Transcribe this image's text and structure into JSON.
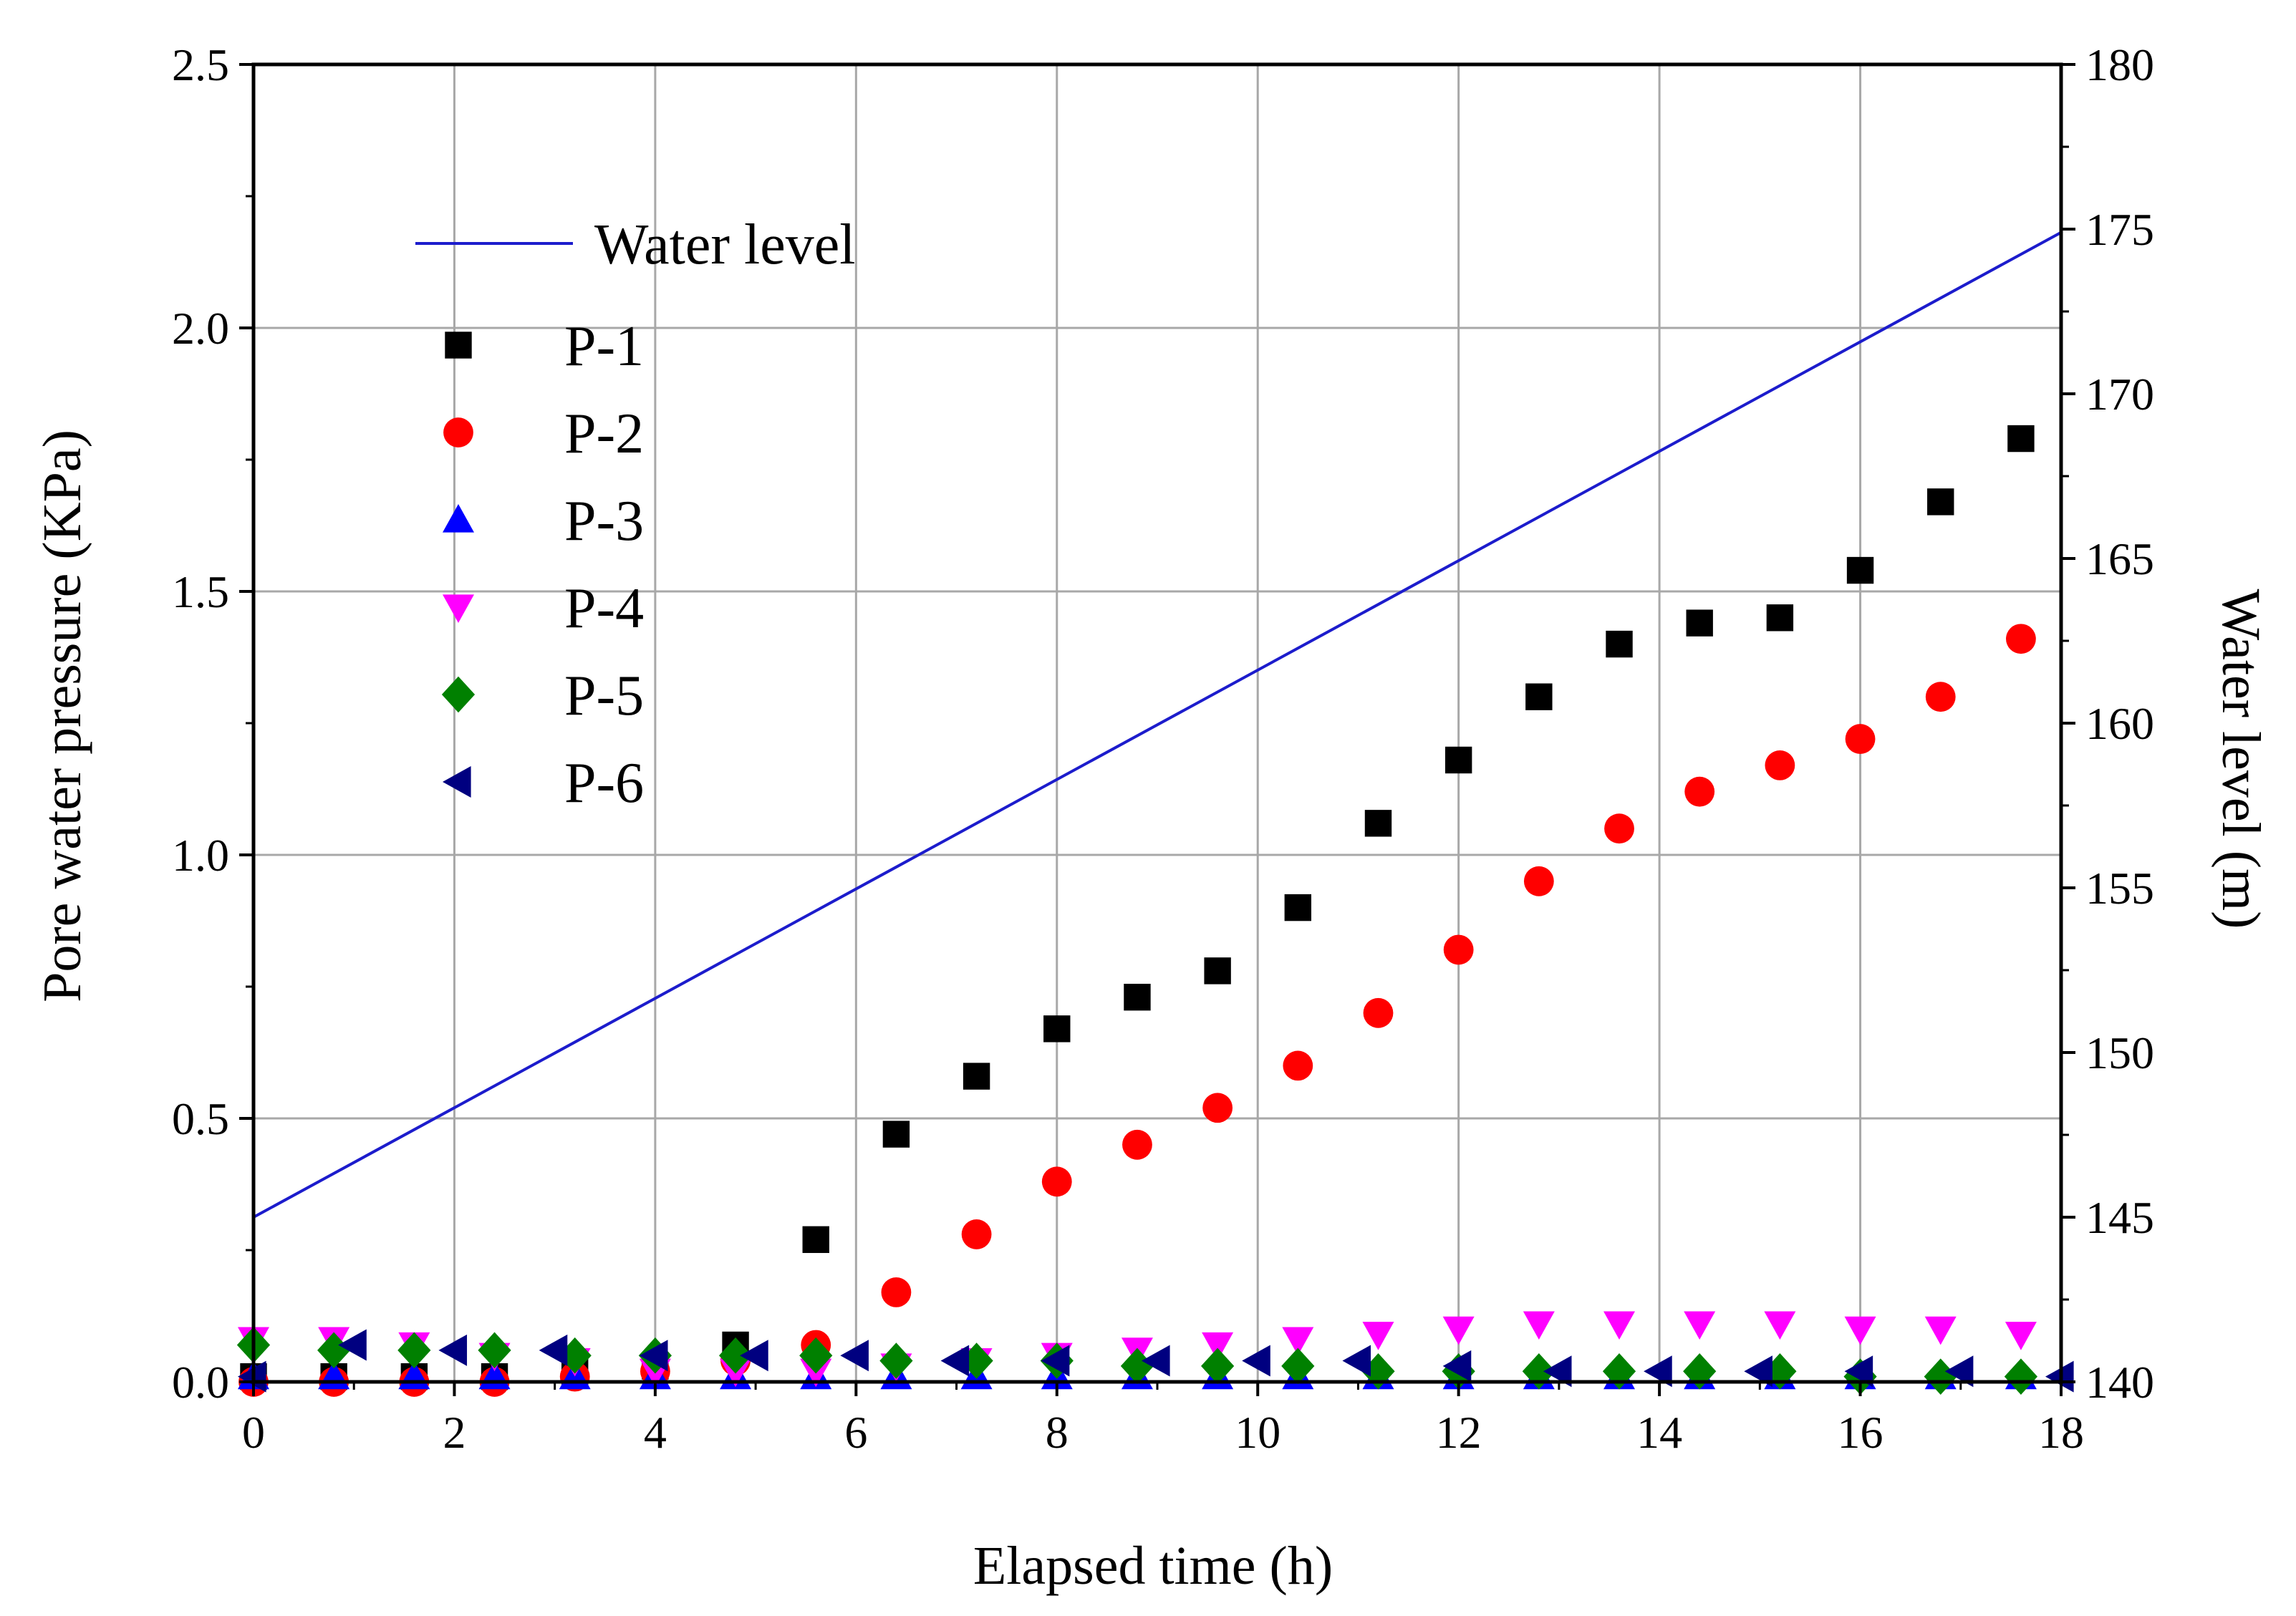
{
  "chart_data": {
    "type": "scatter",
    "title": "",
    "xlabel": "Elapsed time (h)",
    "ylabel": "Pore water pressure (KPa)",
    "y2label": "Water level (m)",
    "xlim": [
      0,
      18
    ],
    "ylim": [
      0,
      2.5
    ],
    "y2lim": [
      140,
      180
    ],
    "xticks": [
      "0",
      "2",
      "4",
      "6",
      "8",
      "10",
      "12",
      "14",
      "16",
      "18"
    ],
    "yticks": [
      "0.0",
      "0.5",
      "1.0",
      "1.5",
      "2.0",
      "2.5"
    ],
    "y2ticks": [
      "140",
      "145",
      "150",
      "155",
      "160",
      "165",
      "170",
      "175",
      "180"
    ],
    "grid": true,
    "legend_position": "top-left",
    "colors": {
      "water_level": "#1c1ccc",
      "y2_axis_label": "#1c1ccc",
      "grid": "#a8a8a8"
    },
    "line": {
      "name": "Water level",
      "axis": "right",
      "color": "#1c1ccc",
      "x": [
        0,
        18
      ],
      "y": [
        145.0,
        174.9
      ]
    },
    "series": [
      {
        "name": "P-1",
        "marker": "square",
        "color": "#000000",
        "x": [
          0,
          0.8,
          1.6,
          2.4,
          3.2,
          4.0,
          4.8,
          5.6,
          6.4,
          7.2,
          8.0,
          8.8,
          9.6,
          10.4,
          11.2,
          12.0,
          12.8,
          13.6,
          14.4,
          15.2,
          16.0,
          16.8,
          17.6
        ],
        "y": [
          0.01,
          0.01,
          0.01,
          0.01,
          0.02,
          0.03,
          0.07,
          0.27,
          0.47,
          0.58,
          0.67,
          0.73,
          0.78,
          0.9,
          1.06,
          1.18,
          1.3,
          1.4,
          1.44,
          1.45,
          1.54,
          1.67,
          1.79
        ]
      },
      {
        "name": "P-2",
        "marker": "circle",
        "color": "#ff0000",
        "x": [
          0,
          0.8,
          1.6,
          2.4,
          3.2,
          4.0,
          4.8,
          5.6,
          6.4,
          7.2,
          8.0,
          8.8,
          9.6,
          10.4,
          11.2,
          12.0,
          12.8,
          13.6,
          14.4,
          15.2,
          16.0,
          16.8,
          17.6
        ],
        "y": [
          0.0,
          0.0,
          0.0,
          0.0,
          0.01,
          0.02,
          0.04,
          0.07,
          0.17,
          0.28,
          0.38,
          0.45,
          0.52,
          0.6,
          0.7,
          0.82,
          0.95,
          1.05,
          1.12,
          1.17,
          1.22,
          1.3,
          1.41
        ]
      },
      {
        "name": "P-3",
        "marker": "triangle-up",
        "color": "#0000ff",
        "x": [
          0,
          0.8,
          1.6,
          2.4,
          3.2,
          4.0,
          4.8,
          5.6,
          6.4,
          7.2,
          8.0,
          8.8,
          9.6,
          10.4,
          11.2,
          12.0,
          12.8,
          13.6,
          14.4,
          15.2,
          16.0,
          16.8,
          17.6
        ],
        "y": [
          0.01,
          0.01,
          0.01,
          0.01,
          0.01,
          0.01,
          0.01,
          0.01,
          0.01,
          0.01,
          0.01,
          0.01,
          0.01,
          0.01,
          0.01,
          0.01,
          0.01,
          0.01,
          0.01,
          0.01,
          0.01,
          0.01,
          0.01
        ]
      },
      {
        "name": "P-4",
        "marker": "triangle-down",
        "color": "#ff00ff",
        "x": [
          0,
          0.8,
          1.6,
          2.4,
          3.2,
          4.0,
          4.8,
          5.6,
          6.4,
          7.2,
          8.0,
          8.8,
          9.6,
          10.4,
          11.2,
          12.0,
          12.8,
          13.6,
          14.4,
          15.2,
          16.0,
          16.8,
          17.6
        ],
        "y": [
          0.08,
          0.08,
          0.07,
          0.05,
          0.04,
          0.02,
          0.02,
          0.02,
          0.03,
          0.04,
          0.05,
          0.06,
          0.07,
          0.08,
          0.09,
          0.1,
          0.11,
          0.11,
          0.11,
          0.11,
          0.1,
          0.1,
          0.09
        ]
      },
      {
        "name": "P-5",
        "marker": "diamond",
        "color": "#008000",
        "x": [
          0,
          0.8,
          1.6,
          2.4,
          3.2,
          4.0,
          4.8,
          5.6,
          6.4,
          7.2,
          8.0,
          8.8,
          9.6,
          10.4,
          11.2,
          12.0,
          12.8,
          13.6,
          14.4,
          15.2,
          16.0,
          16.8,
          17.6
        ],
        "y": [
          0.07,
          0.06,
          0.06,
          0.06,
          0.05,
          0.05,
          0.05,
          0.05,
          0.04,
          0.04,
          0.04,
          0.03,
          0.03,
          0.03,
          0.02,
          0.02,
          0.02,
          0.02,
          0.02,
          0.02,
          0.01,
          0.01,
          0.01
        ]
      },
      {
        "name": "P-6",
        "marker": "triangle-left",
        "color": "#000080",
        "x": [
          0,
          1.0,
          2.0,
          3.0,
          4.0,
          5.0,
          6.0,
          7.0,
          8.0,
          9.0,
          10.0,
          11.0,
          12.0,
          13.0,
          14.0,
          15.0,
          16.0,
          17.0,
          18.0
        ],
        "y": [
          0.01,
          0.07,
          0.06,
          0.06,
          0.05,
          0.05,
          0.05,
          0.04,
          0.04,
          0.04,
          0.04,
          0.04,
          0.03,
          0.02,
          0.02,
          0.02,
          0.02,
          0.02,
          0.01
        ]
      }
    ]
  }
}
